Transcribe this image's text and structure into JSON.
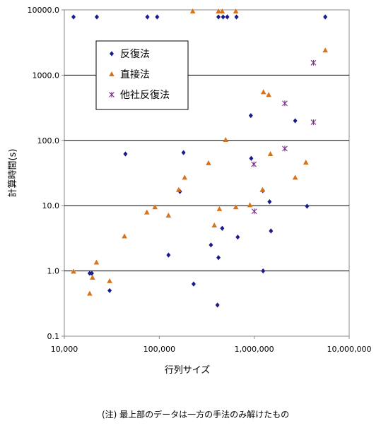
{
  "chart_data": {
    "type": "scatter",
    "title": "",
    "xlabel": "行列サイズ",
    "ylabel": "計算時間(s)",
    "xscale": "log",
    "yscale": "log",
    "xlim": [
      10000,
      10000000
    ],
    "ylim": [
      0.1,
      10000
    ],
    "x_ticks": [
      "10,000",
      "100,000",
      "1,000,000",
      "10,000,000"
    ],
    "y_ticks": [
      "0.1",
      "1.0",
      "10.0",
      "100.0",
      "1000.0",
      "10000.0"
    ],
    "grid": "horizontal",
    "legend_position": "top-left",
    "series": [
      {
        "name": "反復法",
        "marker": "diamond",
        "color": "#1a1a8c",
        "points": [
          [
            12500,
            7800
          ],
          [
            22000,
            7800
          ],
          [
            75000,
            7800
          ],
          [
            95000,
            7800
          ],
          [
            420000,
            7800
          ],
          [
            470000,
            7800
          ],
          [
            520000,
            7800
          ],
          [
            650000,
            7800
          ],
          [
            5600000,
            7800
          ],
          [
            44000,
            62
          ],
          [
            180000,
            65
          ],
          [
            920000,
            240
          ],
          [
            2700000,
            200
          ],
          [
            930000,
            53
          ],
          [
            18500,
            0.92
          ],
          [
            19500,
            0.92
          ],
          [
            30000,
            0.5
          ],
          [
            125000,
            1.75
          ],
          [
            165000,
            16.5
          ],
          [
            230000,
            0.63
          ],
          [
            350000,
            2.5
          ],
          [
            410000,
            0.3
          ],
          [
            420000,
            1.6
          ],
          [
            460000,
            4.5
          ],
          [
            670000,
            3.3
          ],
          [
            1230000,
            17
          ],
          [
            1240000,
            1.0
          ],
          [
            1450000,
            11.5
          ],
          [
            1500000,
            4.1
          ],
          [
            3600000,
            9.8
          ]
        ]
      },
      {
        "name": "直接法",
        "marker": "triangle",
        "color": "#d9731a",
        "points": [
          [
            12500,
            0.98
          ],
          [
            18500,
            0.45
          ],
          [
            19800,
            0.79
          ],
          [
            21800,
            1.35
          ],
          [
            30000,
            0.7
          ],
          [
            43000,
            3.4
          ],
          [
            74000,
            7.9
          ],
          [
            90000,
            9.5
          ],
          [
            125000,
            7.1
          ],
          [
            160000,
            17.5
          ],
          [
            185000,
            27
          ],
          [
            225000,
            10000
          ],
          [
            330000,
            45
          ],
          [
            380000,
            5.0
          ],
          [
            430000,
            8.9
          ],
          [
            420000,
            10000
          ],
          [
            460000,
            10000
          ],
          [
            500000,
            102
          ],
          [
            640000,
            10000
          ],
          [
            640000,
            9.5
          ],
          [
            900000,
            10.2
          ],
          [
            1220000,
            17.5
          ],
          [
            1250000,
            550
          ],
          [
            1420000,
            500
          ],
          [
            1480000,
            62
          ],
          [
            2700000,
            27
          ],
          [
            3500000,
            46
          ],
          [
            5600000,
            2400
          ]
        ]
      },
      {
        "name": "他社反復法",
        "marker": "asterisk",
        "color": "#7a2a8a",
        "points": [
          [
            990000,
            43
          ],
          [
            1000000,
            8.2
          ],
          [
            2100000,
            370
          ],
          [
            2100000,
            75
          ],
          [
            4200000,
            1550
          ],
          [
            4200000,
            190
          ]
        ]
      }
    ]
  },
  "footnote": "(注) 最上部のデータは一方の手法のみ解けたもの"
}
